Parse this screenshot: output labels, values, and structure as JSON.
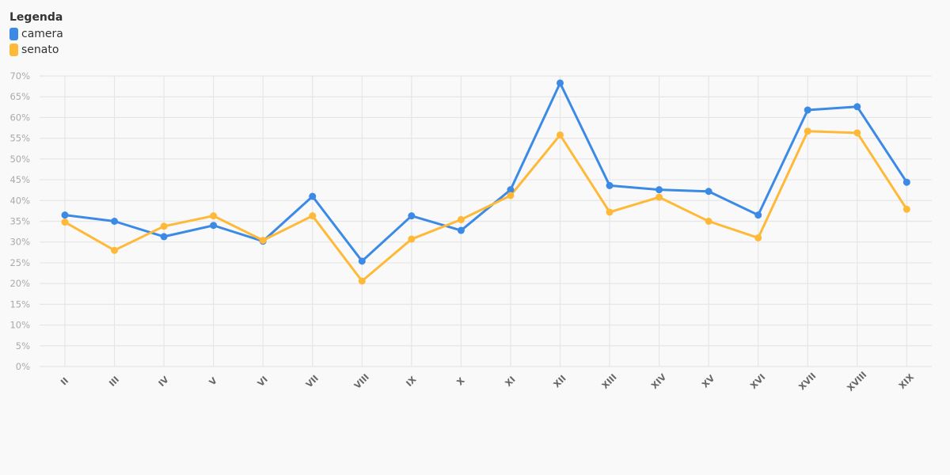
{
  "legend": {
    "title": "Legenda",
    "items": [
      {
        "label": "camera",
        "color": "#3b8ae6"
      },
      {
        "label": "senato",
        "color": "#ffb938"
      }
    ]
  },
  "chart_data": {
    "type": "line",
    "categories": [
      "II",
      "III",
      "IV",
      "V",
      "VI",
      "VII",
      "VIII",
      "IX",
      "X",
      "XI",
      "XII",
      "XIII",
      "XIV",
      "XV",
      "XVI",
      "XVII",
      "XVIII",
      "XIX"
    ],
    "series": [
      {
        "name": "camera",
        "color": "#3b8ae6",
        "values": [
          36.5,
          35.0,
          31.3,
          34.0,
          30.2,
          41.0,
          25.4,
          36.3,
          32.8,
          42.6,
          68.3,
          43.6,
          42.6,
          42.2,
          36.5,
          61.8,
          62.6,
          44.4
        ]
      },
      {
        "name": "senato",
        "color": "#ffb938",
        "values": [
          34.8,
          28.0,
          33.8,
          36.3,
          30.4,
          36.3,
          20.6,
          30.7,
          35.4,
          41.2,
          55.8,
          37.2,
          40.8,
          35.0,
          31.0,
          56.7,
          56.3,
          37.9
        ]
      }
    ],
    "y_ticks": [
      "0%",
      "5%",
      "10%",
      "15%",
      "20%",
      "25%",
      "30%",
      "35%",
      "40%",
      "45%",
      "50%",
      "55%",
      "60%",
      "65%",
      "70%"
    ],
    "ylim": [
      0,
      70
    ],
    "grid": true,
    "legend_position": "top-left"
  }
}
